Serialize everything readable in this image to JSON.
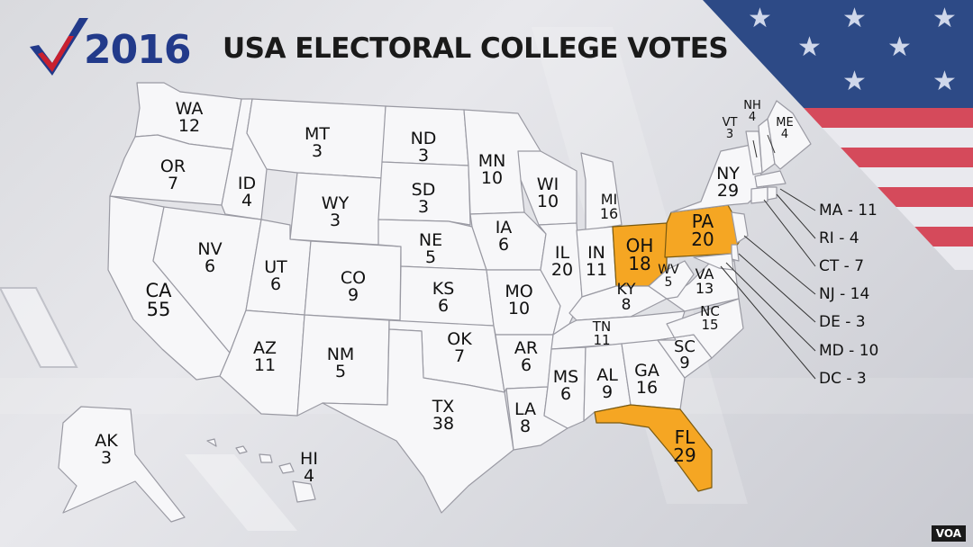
{
  "header": {
    "year": "2016",
    "title": "USA ELECTORAL COLLEGE VOTES"
  },
  "colors": {
    "highlight": "#f5a623",
    "state_fill": "#f7f7f9",
    "state_stroke": "#9a9aa3",
    "logo_blue": "#223a8a",
    "logo_red": "#c8202f"
  },
  "highlighted_states": [
    "OH",
    "PA",
    "FL"
  ],
  "states": [
    {
      "abbr": "WA",
      "votes": "12"
    },
    {
      "abbr": "OR",
      "votes": "7"
    },
    {
      "abbr": "CA",
      "votes": "55"
    },
    {
      "abbr": "ID",
      "votes": "4"
    },
    {
      "abbr": "NV",
      "votes": "6"
    },
    {
      "abbr": "MT",
      "votes": "3"
    },
    {
      "abbr": "WY",
      "votes": "3"
    },
    {
      "abbr": "UT",
      "votes": "6"
    },
    {
      "abbr": "AZ",
      "votes": "11"
    },
    {
      "abbr": "CO",
      "votes": "9"
    },
    {
      "abbr": "NM",
      "votes": "5"
    },
    {
      "abbr": "ND",
      "votes": "3"
    },
    {
      "abbr": "SD",
      "votes": "3"
    },
    {
      "abbr": "NE",
      "votes": "5"
    },
    {
      "abbr": "KS",
      "votes": "6"
    },
    {
      "abbr": "OK",
      "votes": "7"
    },
    {
      "abbr": "TX",
      "votes": "38"
    },
    {
      "abbr": "MN",
      "votes": "10"
    },
    {
      "abbr": "IA",
      "votes": "6"
    },
    {
      "abbr": "MO",
      "votes": "10"
    },
    {
      "abbr": "AR",
      "votes": "6"
    },
    {
      "abbr": "LA",
      "votes": "8"
    },
    {
      "abbr": "WI",
      "votes": "10"
    },
    {
      "abbr": "IL",
      "votes": "20"
    },
    {
      "abbr": "MI",
      "votes": "16"
    },
    {
      "abbr": "IN",
      "votes": "11"
    },
    {
      "abbr": "OH",
      "votes": "18"
    },
    {
      "abbr": "KY",
      "votes": "8"
    },
    {
      "abbr": "TN",
      "votes": "11"
    },
    {
      "abbr": "MS",
      "votes": "6"
    },
    {
      "abbr": "AL",
      "votes": "9"
    },
    {
      "abbr": "GA",
      "votes": "16"
    },
    {
      "abbr": "FL",
      "votes": "29"
    },
    {
      "abbr": "SC",
      "votes": "9"
    },
    {
      "abbr": "NC",
      "votes": "15"
    },
    {
      "abbr": "VA",
      "votes": "13"
    },
    {
      "abbr": "WV",
      "votes": "5"
    },
    {
      "abbr": "PA",
      "votes": "20"
    },
    {
      "abbr": "NY",
      "votes": "29"
    },
    {
      "abbr": "VT",
      "votes": "3"
    },
    {
      "abbr": "NH",
      "votes": "4"
    },
    {
      "abbr": "ME",
      "votes": "4"
    },
    {
      "abbr": "AK",
      "votes": "3"
    },
    {
      "abbr": "HI",
      "votes": "4"
    }
  ],
  "callouts": [
    "MA - 11",
    "RI - 4",
    "CT - 7",
    "NJ - 14",
    "DE - 3",
    "MD - 10",
    "DC - 3"
  ],
  "footer": {
    "credit": "VOA"
  }
}
